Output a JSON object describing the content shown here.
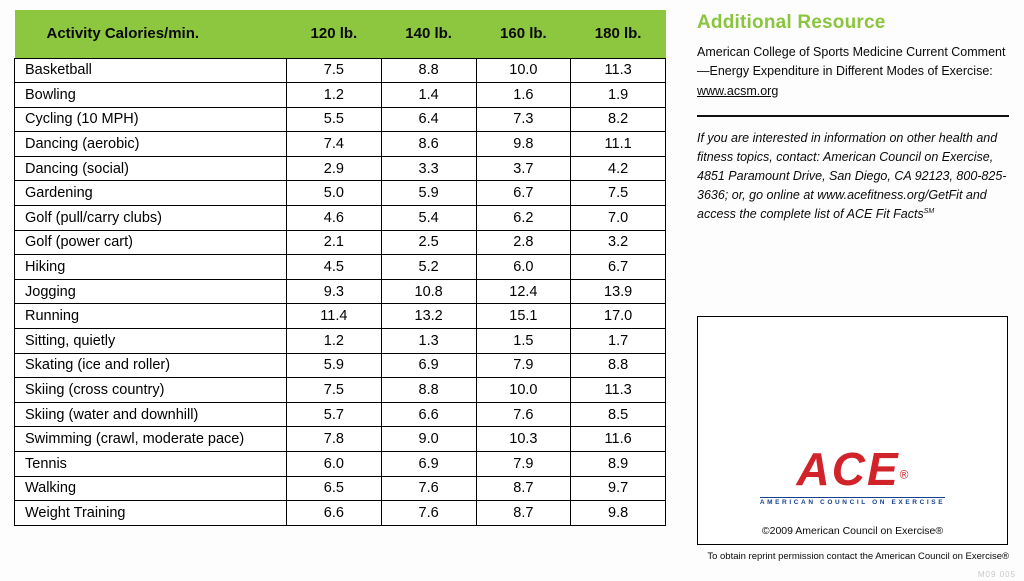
{
  "colors": {
    "header_green": "#8dc63f",
    "title_green": "#8bc53f",
    "ace_red": "#d2232a",
    "ace_blue": "#16418e"
  },
  "table": {
    "header": [
      "Activity Calories/min.",
      "120 lb.",
      "140 lb.",
      "160 lb.",
      "180 lb."
    ],
    "rows": [
      {
        "activity": "Basketball",
        "values": [
          "7.5",
          "8.8",
          "10.0",
          "11.3"
        ]
      },
      {
        "activity": "Bowling",
        "values": [
          "1.2",
          "1.4",
          "1.6",
          "1.9"
        ]
      },
      {
        "activity": "Cycling (10 MPH)",
        "values": [
          "5.5",
          "6.4",
          "7.3",
          "8.2"
        ]
      },
      {
        "activity": "Dancing (aerobic)",
        "values": [
          "7.4",
          "8.6",
          "9.8",
          "11.1"
        ]
      },
      {
        "activity": "Dancing (social)",
        "values": [
          "2.9",
          "3.3",
          "3.7",
          "4.2"
        ]
      },
      {
        "activity": "Gardening",
        "values": [
          "5.0",
          "5.9",
          "6.7",
          "7.5"
        ]
      },
      {
        "activity": "Golf (pull/carry clubs)",
        "values": [
          "4.6",
          "5.4",
          "6.2",
          "7.0"
        ]
      },
      {
        "activity": "Golf (power cart)",
        "values": [
          "2.1",
          "2.5",
          "2.8",
          "3.2"
        ]
      },
      {
        "activity": "Hiking",
        "values": [
          "4.5",
          "5.2",
          "6.0",
          "6.7"
        ]
      },
      {
        "activity": "Jogging",
        "values": [
          "9.3",
          "10.8",
          "12.4",
          "13.9"
        ]
      },
      {
        "activity": "Running",
        "values": [
          "11.4",
          "13.2",
          "15.1",
          "17.0"
        ]
      },
      {
        "activity": "Sitting, quietly",
        "values": [
          "1.2",
          "1.3",
          "1.5",
          "1.7"
        ]
      },
      {
        "activity": "Skating (ice and roller)",
        "values": [
          "5.9",
          "6.9",
          "7.9",
          "8.8"
        ]
      },
      {
        "activity": "Skiing (cross country)",
        "values": [
          "7.5",
          "8.8",
          "10.0",
          "11.3"
        ]
      },
      {
        "activity": "Skiing (water and downhill)",
        "values": [
          "5.7",
          "6.6",
          "7.6",
          "8.5"
        ]
      },
      {
        "activity": "Swimming (crawl, moderate pace)",
        "values": [
          "7.8",
          "9.0",
          "10.3",
          "11.6"
        ]
      },
      {
        "activity": "Tennis",
        "values": [
          "6.0",
          "6.9",
          "7.9",
          "8.9"
        ]
      },
      {
        "activity": "Walking",
        "values": [
          "6.5",
          "7.6",
          "8.7",
          "9.7"
        ]
      },
      {
        "activity": "Weight Training",
        "values": [
          "6.6",
          "7.6",
          "8.7",
          "9.8"
        ]
      }
    ]
  },
  "sidebar": {
    "title": "Additional Resource",
    "resource_text": "American College of Sports Medicine Current Comment—Energy Expenditure in Different Modes of Exercise: ",
    "resource_link": "www.acsm.org",
    "info_text": "If you are interested in information on other health and fitness topics, contact: American Council on Exercise, 4851 Paramount Drive, San Diego, CA 92123, 800-825-3636; or, go online at www.acefitness.org/GetFit and access the complete list of ACE Fit Facts",
    "fit_facts_mark": "SM",
    "logo": {
      "word": "ACE",
      "reg": "®",
      "subtitle": "AMERICAN COUNCIL ON EXERCISE"
    },
    "copyright": "©2009 American Council on Exercise®",
    "reprint": "To obtain reprint permission contact the American Council on Exercise®",
    "doc_code": "M09 005"
  }
}
